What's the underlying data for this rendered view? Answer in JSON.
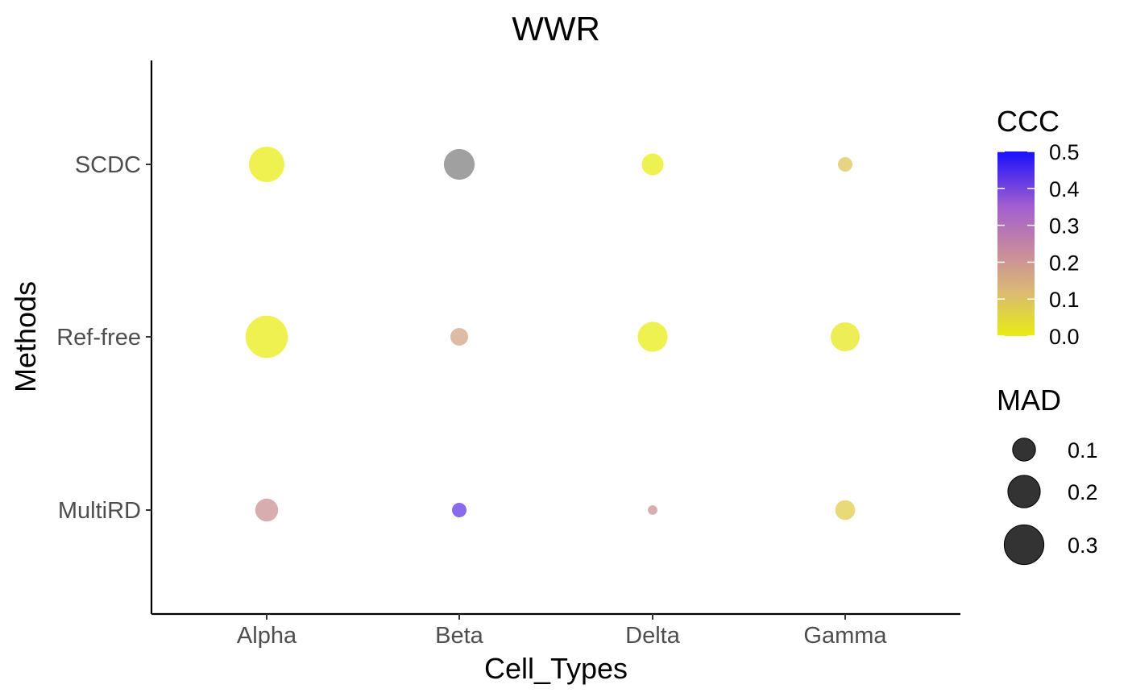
{
  "chart_data": {
    "type": "scatter",
    "title": "WWR",
    "xlabel": "Cell_Types",
    "ylabel": "Methods",
    "x_categories": [
      "Alpha",
      "Beta",
      "Delta",
      "Gamma"
    ],
    "y_categories": [
      "MultiRD",
      "Ref-free",
      "SCDC"
    ],
    "points": [
      {
        "x": "Alpha",
        "y": "SCDC",
        "ccc": 0.0,
        "mad": 0.24
      },
      {
        "x": "Beta",
        "y": "SCDC",
        "ccc": null,
        "mad": 0.18
      },
      {
        "x": "Delta",
        "y": "SCDC",
        "ccc": 0.0,
        "mad": 0.09
      },
      {
        "x": "Gamma",
        "y": "SCDC",
        "ccc": 0.09,
        "mad": 0.04
      },
      {
        "x": "Alpha",
        "y": "Ref-free",
        "ccc": 0.0,
        "mad": 0.34
      },
      {
        "x": "Beta",
        "y": "Ref-free",
        "ccc": 0.17,
        "mad": 0.06
      },
      {
        "x": "Delta",
        "y": "Ref-free",
        "ccc": 0.0,
        "mad": 0.17
      },
      {
        "x": "Gamma",
        "y": "Ref-free",
        "ccc": 0.01,
        "mad": 0.16
      },
      {
        "x": "Alpha",
        "y": "MultiRD",
        "ccc": 0.21,
        "mad": 0.1
      },
      {
        "x": "Beta",
        "y": "MultiRD",
        "ccc": 0.42,
        "mad": 0.04
      },
      {
        "x": "Delta",
        "y": "MultiRD",
        "ccc": 0.21,
        "mad": 0.017
      },
      {
        "x": "Gamma",
        "y": "MultiRD",
        "ccc": 0.07,
        "mad": 0.075
      }
    ],
    "color_legend": {
      "title": "CCC",
      "min": 0.0,
      "max": 0.5,
      "ticks": [
        "0.0",
        "0.1",
        "0.2",
        "0.3",
        "0.4",
        "0.5"
      ],
      "colors": [
        "#e8ec14",
        "#d9b776",
        "#c98c9c",
        "#a35fcf",
        "#1a10fb"
      ]
    },
    "size_legend": {
      "title": "MAD",
      "values": [
        0.1,
        0.2,
        0.3
      ],
      "labels": [
        "0.1",
        "0.2",
        "0.3"
      ]
    },
    "na_color": "#808080",
    "grid": false,
    "legend_position": "right"
  }
}
